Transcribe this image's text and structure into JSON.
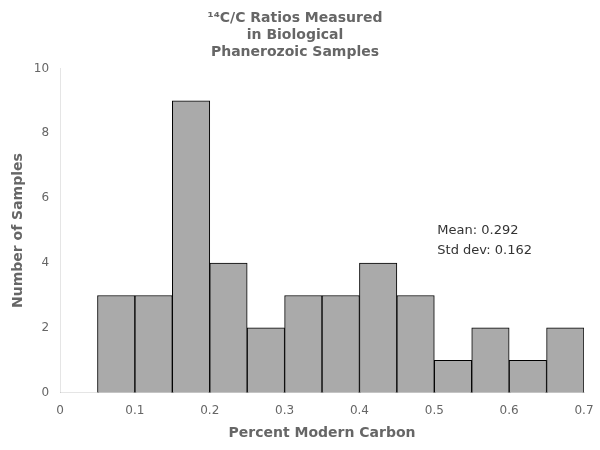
{
  "chart_data": {
    "type": "histogram",
    "title": "¹⁴C/C Ratios Measured\nin Biological\nPhanerozoic Samples",
    "x_label": "Percent Modern Carbon",
    "y_label": "Number of Samples",
    "bins": [
      0.05,
      0.1,
      0.15,
      0.2,
      0.25,
      0.3,
      0.35,
      0.4,
      0.45,
      0.5,
      0.55,
      0.6,
      0.65,
      0.7
    ],
    "counts": [
      3,
      3,
      9,
      4,
      2,
      3,
      3,
      4,
      3,
      1,
      2,
      1,
      2
    ],
    "color": "#aaaaaa",
    "annotations": [
      "Mean: 0.292",
      "Std dev: 0.162"
    ],
    "xlim": [
      0.0,
      0.7
    ],
    "ylim": [
      0,
      10
    ],
    "xticks": [
      0.0,
      0.1,
      0.2,
      0.3,
      0.4,
      0.5,
      0.6,
      0.7
    ],
    "yticks": [
      0,
      2,
      4,
      6,
      8,
      10
    ],
    "grid": false
  }
}
